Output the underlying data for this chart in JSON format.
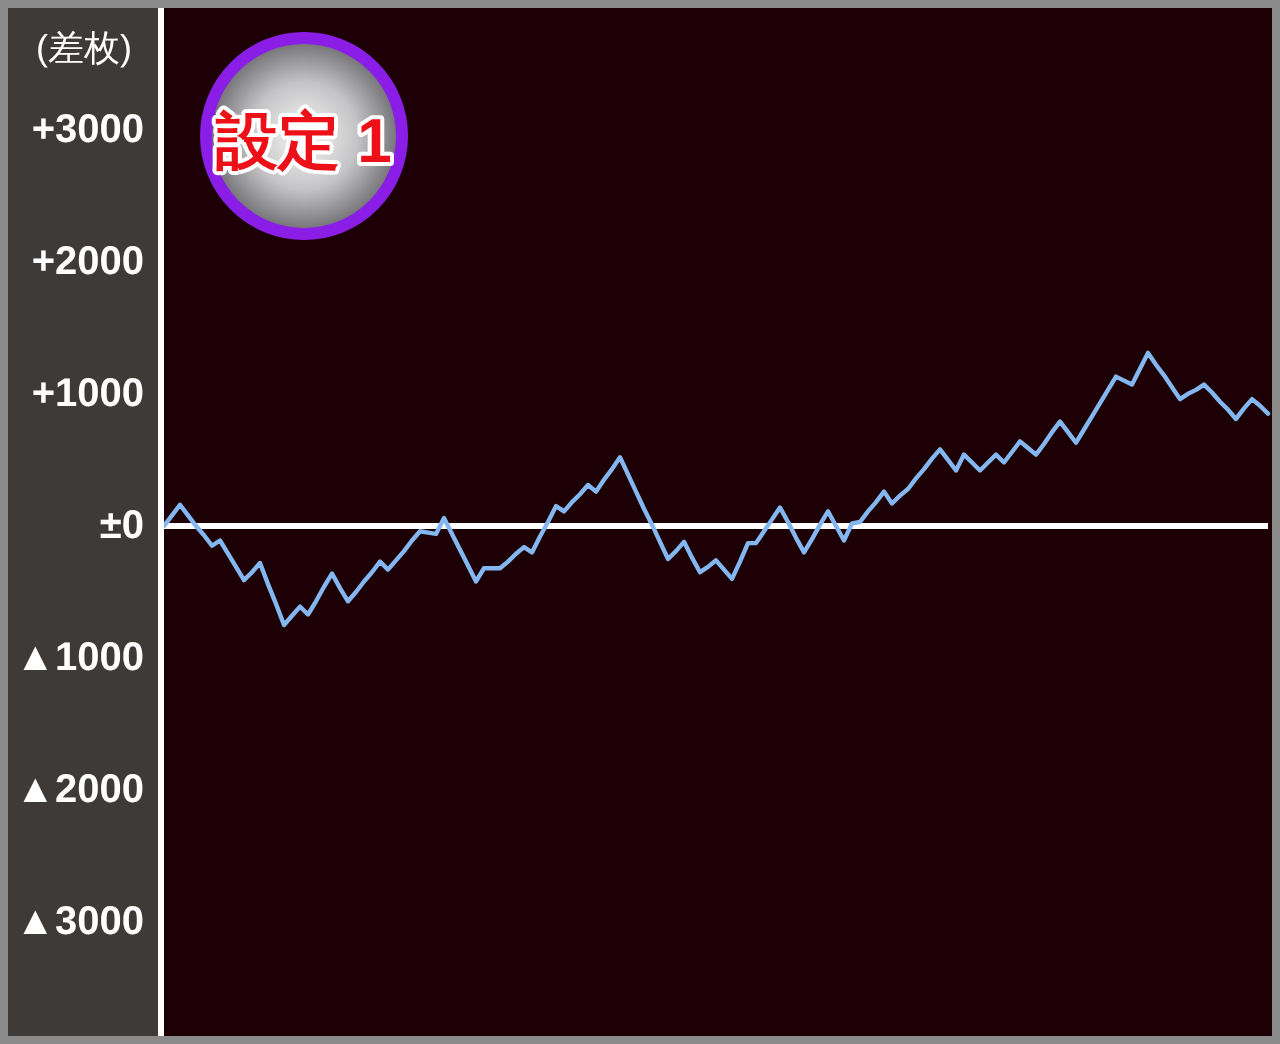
{
  "chart_data": {
    "type": "line",
    "ylabel": "(差枚)",
    "annotations": [
      "設定 1"
    ],
    "categories": [
      null,
      null,
      null,
      null,
      null,
      null,
      null,
      null,
      null,
      null,
      null,
      null,
      null,
      null,
      null,
      null,
      null,
      null,
      null,
      null,
      null,
      null,
      null,
      null,
      null,
      null,
      null,
      null,
      null,
      null,
      null,
      null,
      null,
      null,
      null,
      null,
      null,
      null,
      null,
      null,
      null,
      null,
      null,
      null,
      null,
      null,
      null,
      null,
      null,
      null,
      null,
      null,
      null,
      null,
      null,
      null,
      null,
      null,
      null,
      null,
      null,
      null,
      null,
      null,
      null,
      null,
      null,
      null,
      null,
      null,
      null,
      null,
      null,
      null,
      null,
      null,
      null,
      null,
      null,
      null,
      null,
      null,
      null,
      null,
      null,
      null,
      null,
      null,
      null,
      null,
      null,
      null,
      null,
      null,
      null,
      null,
      null,
      null,
      null,
      null,
      null,
      null,
      null,
      null,
      null,
      null,
      null,
      null,
      null,
      null,
      null,
      null,
      null,
      null,
      null,
      null,
      null,
      null,
      null,
      null,
      null,
      null,
      null,
      null,
      null,
      null,
      null,
      null,
      null,
      null,
      null,
      null,
      null,
      null,
      null,
      null,
      null,
      null,
      null
    ],
    "series": [
      {
        "color": "#84b6f0",
        "values": [
          0,
          80,
          160,
          80,
          0,
          -70,
          -150,
          -110,
          -210,
          -310,
          -410,
          -350,
          -280,
          -440,
          -590,
          -750,
          -680,
          -610,
          -670,
          -570,
          -460,
          -360,
          -470,
          -570,
          -500,
          -420,
          -350,
          -270,
          -330,
          -260,
          -190,
          -110,
          -40,
          -50,
          -60,
          60,
          -60,
          -180,
          -300,
          -420,
          -320,
          -320,
          -320,
          -270,
          -210,
          -160,
          -200,
          -80,
          30,
          150,
          110,
          180,
          240,
          310,
          260,
          350,
          430,
          520,
          390,
          260,
          130,
          10,
          -120,
          -250,
          -190,
          -120,
          -240,
          -350,
          -310,
          -260,
          -330,
          -400,
          -270,
          -130,
          -130,
          -40,
          50,
          140,
          30,
          -90,
          -200,
          -100,
          10,
          110,
          0,
          -110,
          20,
          30,
          110,
          180,
          260,
          170,
          230,
          280,
          360,
          430,
          510,
          580,
          500,
          420,
          540,
          480,
          420,
          480,
          540,
          480,
          560,
          640,
          590,
          540,
          620,
          710,
          790,
          710,
          630,
          730,
          830,
          930,
          1030,
          1130,
          1100,
          1070,
          1190,
          1310,
          1220,
          1140,
          1050,
          960,
          1000,
          1030,
          1070,
          1010,
          940,
          880,
          810,
          890,
          960,
          910,
          850
        ]
      }
    ],
    "ylim": [
      -3860,
      3920
    ],
    "yticks": [
      {
        "value": -3000,
        "label": "▲3000"
      },
      {
        "value": -2000,
        "label": "▲2000"
      },
      {
        "value": -1000,
        "label": "▲1000"
      },
      {
        "value": 0,
        "label": "±0"
      },
      {
        "value": 1000,
        "label": "+1000"
      },
      {
        "value": 2000,
        "label": "+2000"
      },
      {
        "value": 3000,
        "label": "+3000"
      }
    ],
    "ref_lines": [
      {
        "axis": "y",
        "value": 0,
        "color": "#ffffff"
      }
    ],
    "tick_labels": "y",
    "line_style": "solid"
  }
}
